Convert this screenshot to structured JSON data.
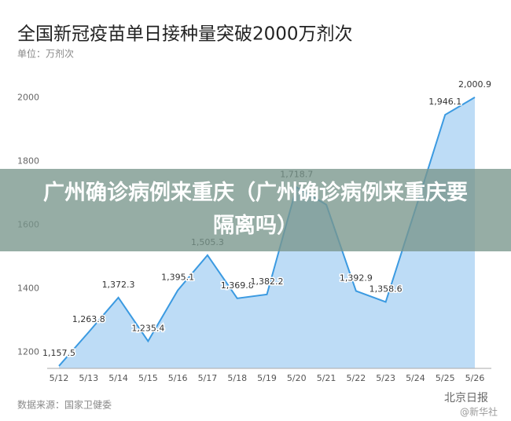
{
  "chart_data": {
    "type": "area",
    "title": "全国新冠疫苗单日接种量突破2000万剂次",
    "subtitle": "单位：万剂次",
    "source": "数据来源：国家卫健委",
    "categories": [
      "5/12",
      "5/13",
      "5/14",
      "5/15",
      "5/16",
      "5/17",
      "5/18",
      "5/19",
      "5/20",
      "5/21",
      "5/22",
      "5/23",
      "5/24",
      "5/25",
      "5/26"
    ],
    "values": [
      1157.5,
      1263.8,
      1372.3,
      1235.4,
      1395.1,
      1505.3,
      1369.8,
      1382.2,
      1718.7,
      1664,
      1392.9,
      1358.6,
      1650,
      1946.1,
      2000.9
    ],
    "value_labels": [
      "1,157.5",
      "1,263.8",
      "1,372.3",
      "1,235.4",
      "1,395.1",
      "1,505.3",
      "1,369.8",
      "1,382.2",
      "1,718.7",
      null,
      "1,392.9",
      "1,358.6",
      null,
      "1,946.1",
      "2,000.9"
    ],
    "color": "#3b9ae1",
    "fill": "#bddcf6",
    "ylim": [
      1150,
      2050
    ],
    "yticks": [
      1200,
      1400,
      1600,
      1800,
      2000
    ],
    "grid": false
  },
  "overlay": {
    "headline": "广州确诊病例来重庆（广州确诊病例来重庆要隔离吗）"
  },
  "watermark": {
    "text": "北京日报",
    "sub": "@新华社"
  }
}
